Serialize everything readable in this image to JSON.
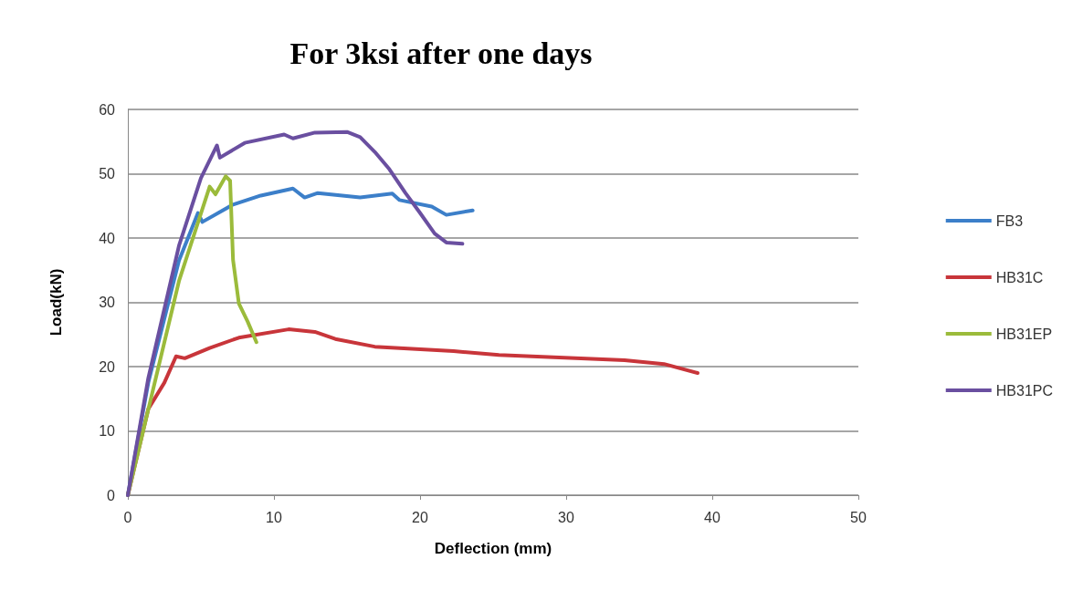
{
  "chart_data": {
    "type": "line",
    "title": "For 3ksi after one days",
    "xlabel": "Deflection (mm)",
    "ylabel": "Load(kN)",
    "xlim": [
      0,
      50
    ],
    "xticks": [
      0,
      10,
      20,
      30,
      40,
      50
    ],
    "ylim": [
      0,
      60
    ],
    "yticks": [
      0,
      10,
      20,
      30,
      40,
      50,
      60
    ],
    "grid": "y",
    "legend": "right",
    "marker": "none",
    "line_style": "solid",
    "series": [
      {
        "name": "FB3",
        "color": "#3c7fc9",
        "x": [
          0,
          1.4,
          3.5,
          4.8,
          5.1,
          7.2,
          9.1,
          11.3,
          12.1,
          13,
          15.9,
          18.1,
          18.6,
          20.8,
          21.8,
          23.6
        ],
        "values": [
          0,
          17.5,
          36.5,
          43.9,
          42.5,
          45.2,
          46.6,
          47.7,
          46.3,
          47,
          46.3,
          46.9,
          45.9,
          44.9,
          43.6,
          44.3
        ]
      },
      {
        "name": "HB31C",
        "color": "#c8353a",
        "x": [
          0,
          1.4,
          2.5,
          3.3,
          3.9,
          5.6,
          7.6,
          11,
          12.8,
          14.2,
          16.9,
          22.3,
          25.4,
          34,
          36.7,
          39
        ],
        "values": [
          0,
          13.4,
          17.5,
          21.6,
          21.3,
          22.9,
          24.5,
          25.8,
          25.4,
          24.3,
          23.1,
          22.4,
          21.8,
          21,
          20.4,
          19
        ]
      },
      {
        "name": "HB31EP",
        "color": "#9bbb3b",
        "x": [
          0,
          3.5,
          5.6,
          6,
          6.7,
          7,
          7.2,
          7.6,
          8.2,
          8.8
        ],
        "values": [
          0,
          33.3,
          48,
          46.8,
          49.6,
          48.9,
          36.6,
          29.8,
          27,
          23.8
        ]
      },
      {
        "name": "HB31PC",
        "color": "#6a4fa0",
        "x": [
          0,
          1.4,
          3.5,
          5,
          6.1,
          6.3,
          8,
          10.7,
          11.3,
          12.8,
          15,
          15.9,
          16.9,
          17.9,
          19,
          20,
          21,
          21.8,
          22.9
        ],
        "values": [
          0,
          18.2,
          38.8,
          49.3,
          54.4,
          52.5,
          54.8,
          56.1,
          55.5,
          56.4,
          56.5,
          55.7,
          53.4,
          50.7,
          47,
          43.9,
          40.7,
          39.3,
          39.1
        ]
      }
    ]
  }
}
